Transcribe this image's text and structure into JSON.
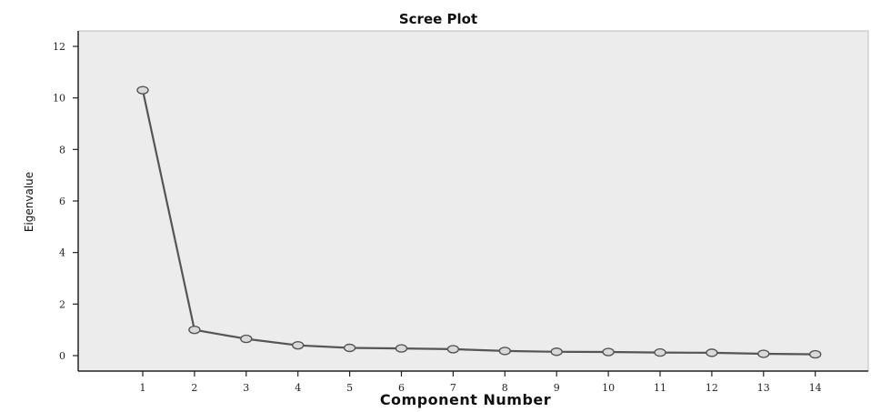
{
  "chart_data": {
    "type": "line",
    "title": "Scree Plot",
    "xlabel": "Component Number",
    "ylabel": "Eigenvalue",
    "x": [
      1,
      2,
      3,
      4,
      5,
      6,
      7,
      8,
      9,
      10,
      11,
      12,
      13,
      14
    ],
    "x_tick_labels": [
      "1",
      "2",
      "3",
      "4",
      "5",
      "6",
      "7",
      "8",
      "9",
      "10",
      "11",
      "12",
      "13",
      "14"
    ],
    "y_ticks": [
      0,
      2,
      4,
      6,
      8,
      10,
      12
    ],
    "y_tick_labels": [
      "0",
      "2",
      "4",
      "6",
      "8",
      "10",
      "12"
    ],
    "series": [
      {
        "values": [
          10.3,
          1.0,
          0.65,
          0.4,
          0.3,
          0.28,
          0.25,
          0.18,
          0.15,
          0.14,
          0.12,
          0.11,
          0.07,
          0.05
        ]
      }
    ],
    "ylim": [
      -0.6,
      12.6
    ],
    "grid": false,
    "colors": {
      "plot_background": "#ececec",
      "line": "#555555",
      "marker_fill": "#d9d9d9",
      "axis": "#222222"
    }
  }
}
